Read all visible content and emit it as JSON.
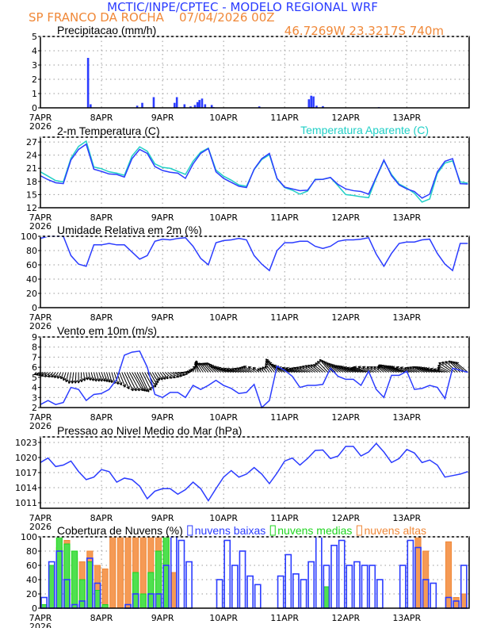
{
  "header": {
    "title": "MCTIC/INPE/CPTEC - MODELO REGIONAL WRF",
    "station_run": "SP FRANCO DA ROCHA    07/04/2026 00Z",
    "location": "46.7269W 23.3217S 740m"
  },
  "colors": {
    "title": "#2b3cff",
    "orange": "#f08838",
    "line": "#2b3cff",
    "apparent": "#20cfc6",
    "mid": "#1ed51e",
    "high": "#f08838",
    "low": "#2b3cff"
  },
  "x_axis": {
    "labels": [
      "7APR",
      "8APR",
      "9APR",
      "10APR",
      "11APR",
      "12APR",
      "13APR"
    ],
    "year": "2026",
    "time_step_hours": 3
  },
  "chart_data": [
    {
      "type": "bar",
      "title": "Precipitacao (mm/h)",
      "ylim": [
        0,
        5
      ],
      "yticks": [
        "0",
        "1",
        "2",
        "3",
        "4",
        "5"
      ],
      "grid": true,
      "hours": [
        18.7,
        19.7,
        38,
        40,
        44.5,
        52.7,
        53.6,
        56.6,
        59,
        60.7,
        61.7,
        62.5,
        63.5,
        64.7,
        67.3,
        68,
        86,
        105.5,
        106.4,
        107.3,
        108.5,
        111,
        133
      ],
      "values": [
        3.5,
        0.25,
        0.15,
        0.35,
        0.75,
        0.35,
        0.75,
        0.25,
        0.1,
        0.2,
        0.4,
        0.55,
        0.65,
        0.25,
        0.2,
        0.05,
        0.1,
        0.6,
        0.85,
        0.8,
        0.15,
        0.12,
        0.05
      ]
    },
    {
      "type": "line",
      "title": "2-m Temperatura (C)",
      "ylim": [
        12,
        28.1
      ],
      "yticks": [
        "12",
        "15",
        "18",
        "21",
        "24",
        "27"
      ],
      "grid": true,
      "series": [
        {
          "name": "2-m Temperatura (C)",
          "values": [
            19.3,
            18.4,
            17.7,
            17.5,
            22.9,
            25.3,
            26.5,
            20.8,
            20.3,
            19.7,
            19.6,
            19.0,
            23.2,
            25.3,
            24.4,
            21.4,
            20.5,
            20.1,
            19.9,
            18.7,
            22.0,
            24.4,
            25.5,
            20.2,
            18.7,
            17.8,
            16.9,
            16.6,
            20.8,
            23.2,
            24.4,
            18.7,
            16.7,
            16.3,
            15.9,
            16.0,
            18.4,
            18.5,
            18.9,
            17.3,
            16.3,
            15.9,
            15.7,
            15.1,
            19.0,
            22.9,
            19.3,
            17.2,
            16.3,
            15.7,
            14.2,
            15.1,
            20.2,
            22.6,
            23.2,
            17.5,
            17.4
          ]
        },
        {
          "name": "Temperatura Aparente (C)",
          "values": [
            20.2,
            19.2,
            18.2,
            17.9,
            23.3,
            26.0,
            27.2,
            21.3,
            20.9,
            20.2,
            19.9,
            19.4,
            23.8,
            25.9,
            24.9,
            22.0,
            21.2,
            21.0,
            20.3,
            19.6,
            22.6,
            24.7,
            25.6,
            20.6,
            19.2,
            18.3,
            17.2,
            16.9,
            20.7,
            23.0,
            24.1,
            18.6,
            16.6,
            16.0,
            15.1,
            15.8,
            18.5,
            18.5,
            18.9,
            17.0,
            15.0,
            14.8,
            14.5,
            14.3,
            18.8,
            22.7,
            19.6,
            17.4,
            16.5,
            15.3,
            13.3,
            14.0,
            19.8,
            22.2,
            22.7,
            17.9,
            17.6
          ]
        }
      ]
    },
    {
      "type": "line",
      "title": "Umidade Relativa em 2m (%)",
      "ylim": [
        0,
        100
      ],
      "yticks": [
        "0",
        "20",
        "40",
        "60",
        "80",
        "100"
      ],
      "grid": true,
      "series": [
        {
          "values": [
            97,
            100,
            100,
            100,
            73,
            61,
            58,
            88,
            88,
            90,
            88,
            88,
            78,
            68,
            73,
            93,
            96,
            95,
            97,
            98,
            86,
            69,
            60,
            91,
            94,
            95,
            97,
            95,
            73,
            61,
            52,
            80,
            91,
            91,
            93,
            93,
            86,
            83,
            86,
            93,
            95,
            95,
            96,
            98,
            75,
            58,
            76,
            90,
            92,
            92,
            95,
            96,
            76,
            61,
            52,
            90,
            90
          ]
        }
      ]
    },
    {
      "type": "line",
      "title": "Vento em 10m (m/s)",
      "ylim": [
        2,
        9
      ],
      "yticks": [
        "2",
        "3",
        "4",
        "5",
        "6",
        "7",
        "8",
        "9"
      ],
      "grid": true,
      "series": [
        {
          "values": [
            2.3,
            2.7,
            2.3,
            2.5,
            4.0,
            3.8,
            2.7,
            3.3,
            3.4,
            3.8,
            4.8,
            7.2,
            7.5,
            7.6,
            6.0,
            3.3,
            3.0,
            3.5,
            3.5,
            3.0,
            4.2,
            3.8,
            4.2,
            4.7,
            4.2,
            3.9,
            3.4,
            3.5,
            4.3,
            2.0,
            2.7,
            6.1,
            5.7,
            5.1,
            4.0,
            4.2,
            4.2,
            4.3,
            5.9,
            5.1,
            4.8,
            4.8,
            4.2,
            5.6,
            3.8,
            3.0,
            5.2,
            5.2,
            5.6,
            3.8,
            3.9,
            4.2,
            4.0,
            2.9,
            5.9,
            5.7,
            5.5
          ]
        }
      ],
      "wind_direction_deg": [
        70,
        60,
        40,
        20,
        10,
        0,
        350,
        345,
        340,
        345,
        340,
        335,
        330,
        335,
        330,
        330,
        320,
        300,
        280,
        250,
        200,
        150,
        140,
        135,
        120,
        110,
        110,
        115,
        120,
        130,
        145,
        140,
        120,
        110,
        110,
        115,
        125,
        130,
        140,
        130,
        120,
        115,
        110,
        110,
        120,
        130,
        120,
        115,
        110,
        115,
        120,
        115,
        110,
        110,
        125,
        135,
        130
      ]
    },
    {
      "type": "line",
      "title": "Pressao ao Nivel Medio do Mar (hPa)",
      "ylim": [
        1009.9,
        1024.1
      ],
      "yticks": [
        "1011",
        "1014",
        "1017",
        "1020",
        "1023"
      ],
      "grid": true,
      "series": [
        {
          "values": [
            1019.0,
            1019.9,
            1018.2,
            1018.5,
            1019.3,
            1017.2,
            1015.6,
            1016.1,
            1017.6,
            1017.2,
            1015.1,
            1015.9,
            1015.6,
            1014.3,
            1011.8,
            1013.3,
            1013.8,
            1013.8,
            1012.7,
            1013.6,
            1015.1,
            1013.8,
            1011.4,
            1013.8,
            1016.1,
            1017.4,
            1016.1,
            1016.7,
            1018.0,
            1016.7,
            1014.8,
            1016.9,
            1019.3,
            1019.9,
            1018.5,
            1019.8,
            1021.4,
            1021.5,
            1019.8,
            1020.3,
            1022.2,
            1022.2,
            1020.3,
            1021.1,
            1022.8,
            1021.1,
            1019.0,
            1019.8,
            1021.6,
            1020.9,
            1019.0,
            1019.5,
            1018.5,
            1016.1,
            1016.4,
            1016.7,
            1017.2
          ]
        }
      ]
    },
    {
      "type": "bar",
      "title": "Cobertura de Nuvens (%)",
      "ylim": [
        0,
        100
      ],
      "yticks": [
        "0",
        "20",
        "40",
        "60",
        "80",
        "100"
      ],
      "grid": true,
      "legend": "top",
      "series": [
        {
          "name": "nuvens altas",
          "values": [
            0,
            55,
            85,
            95,
            70,
            65,
            80,
            60,
            55,
            100,
            100,
            100,
            100,
            100,
            100,
            100,
            95,
            50,
            0,
            0,
            0,
            0,
            0,
            0,
            0,
            0,
            0,
            0,
            0,
            0,
            0,
            0,
            0,
            0,
            0,
            0,
            0,
            0,
            0,
            0,
            0,
            0,
            0,
            0,
            0,
            0,
            0,
            0,
            0,
            100,
            80,
            0,
            0,
            93,
            15,
            20
          ]
        },
        {
          "name": "nuvens medias",
          "values": [
            5,
            60,
            100,
            90,
            80,
            40,
            65,
            25,
            5,
            0,
            0,
            0,
            50,
            20,
            50,
            80,
            100,
            0,
            0,
            0,
            0,
            0,
            0,
            0,
            0,
            0,
            0,
            0,
            0,
            0,
            0,
            0,
            0,
            0,
            0,
            0,
            0,
            30,
            0,
            0,
            0,
            0,
            0,
            0,
            0,
            0,
            0,
            0,
            0,
            0,
            0,
            0,
            0,
            0,
            0,
            0
          ]
        },
        {
          "name": "nuvens baixas",
          "values": [
            15,
            65,
            80,
            40,
            5,
            10,
            70,
            35,
            0,
            0,
            0,
            5,
            20,
            0,
            20,
            20,
            60,
            100,
            95,
            65,
            0,
            0,
            0,
            40,
            95,
            60,
            80,
            45,
            33,
            0,
            0,
            45,
            75,
            48,
            40,
            65,
            100,
            60,
            88,
            95,
            60,
            65,
            60,
            60,
            40,
            0,
            0,
            60,
            95,
            85,
            40,
            35,
            0,
            15,
            10,
            60
          ]
        }
      ]
    }
  ]
}
